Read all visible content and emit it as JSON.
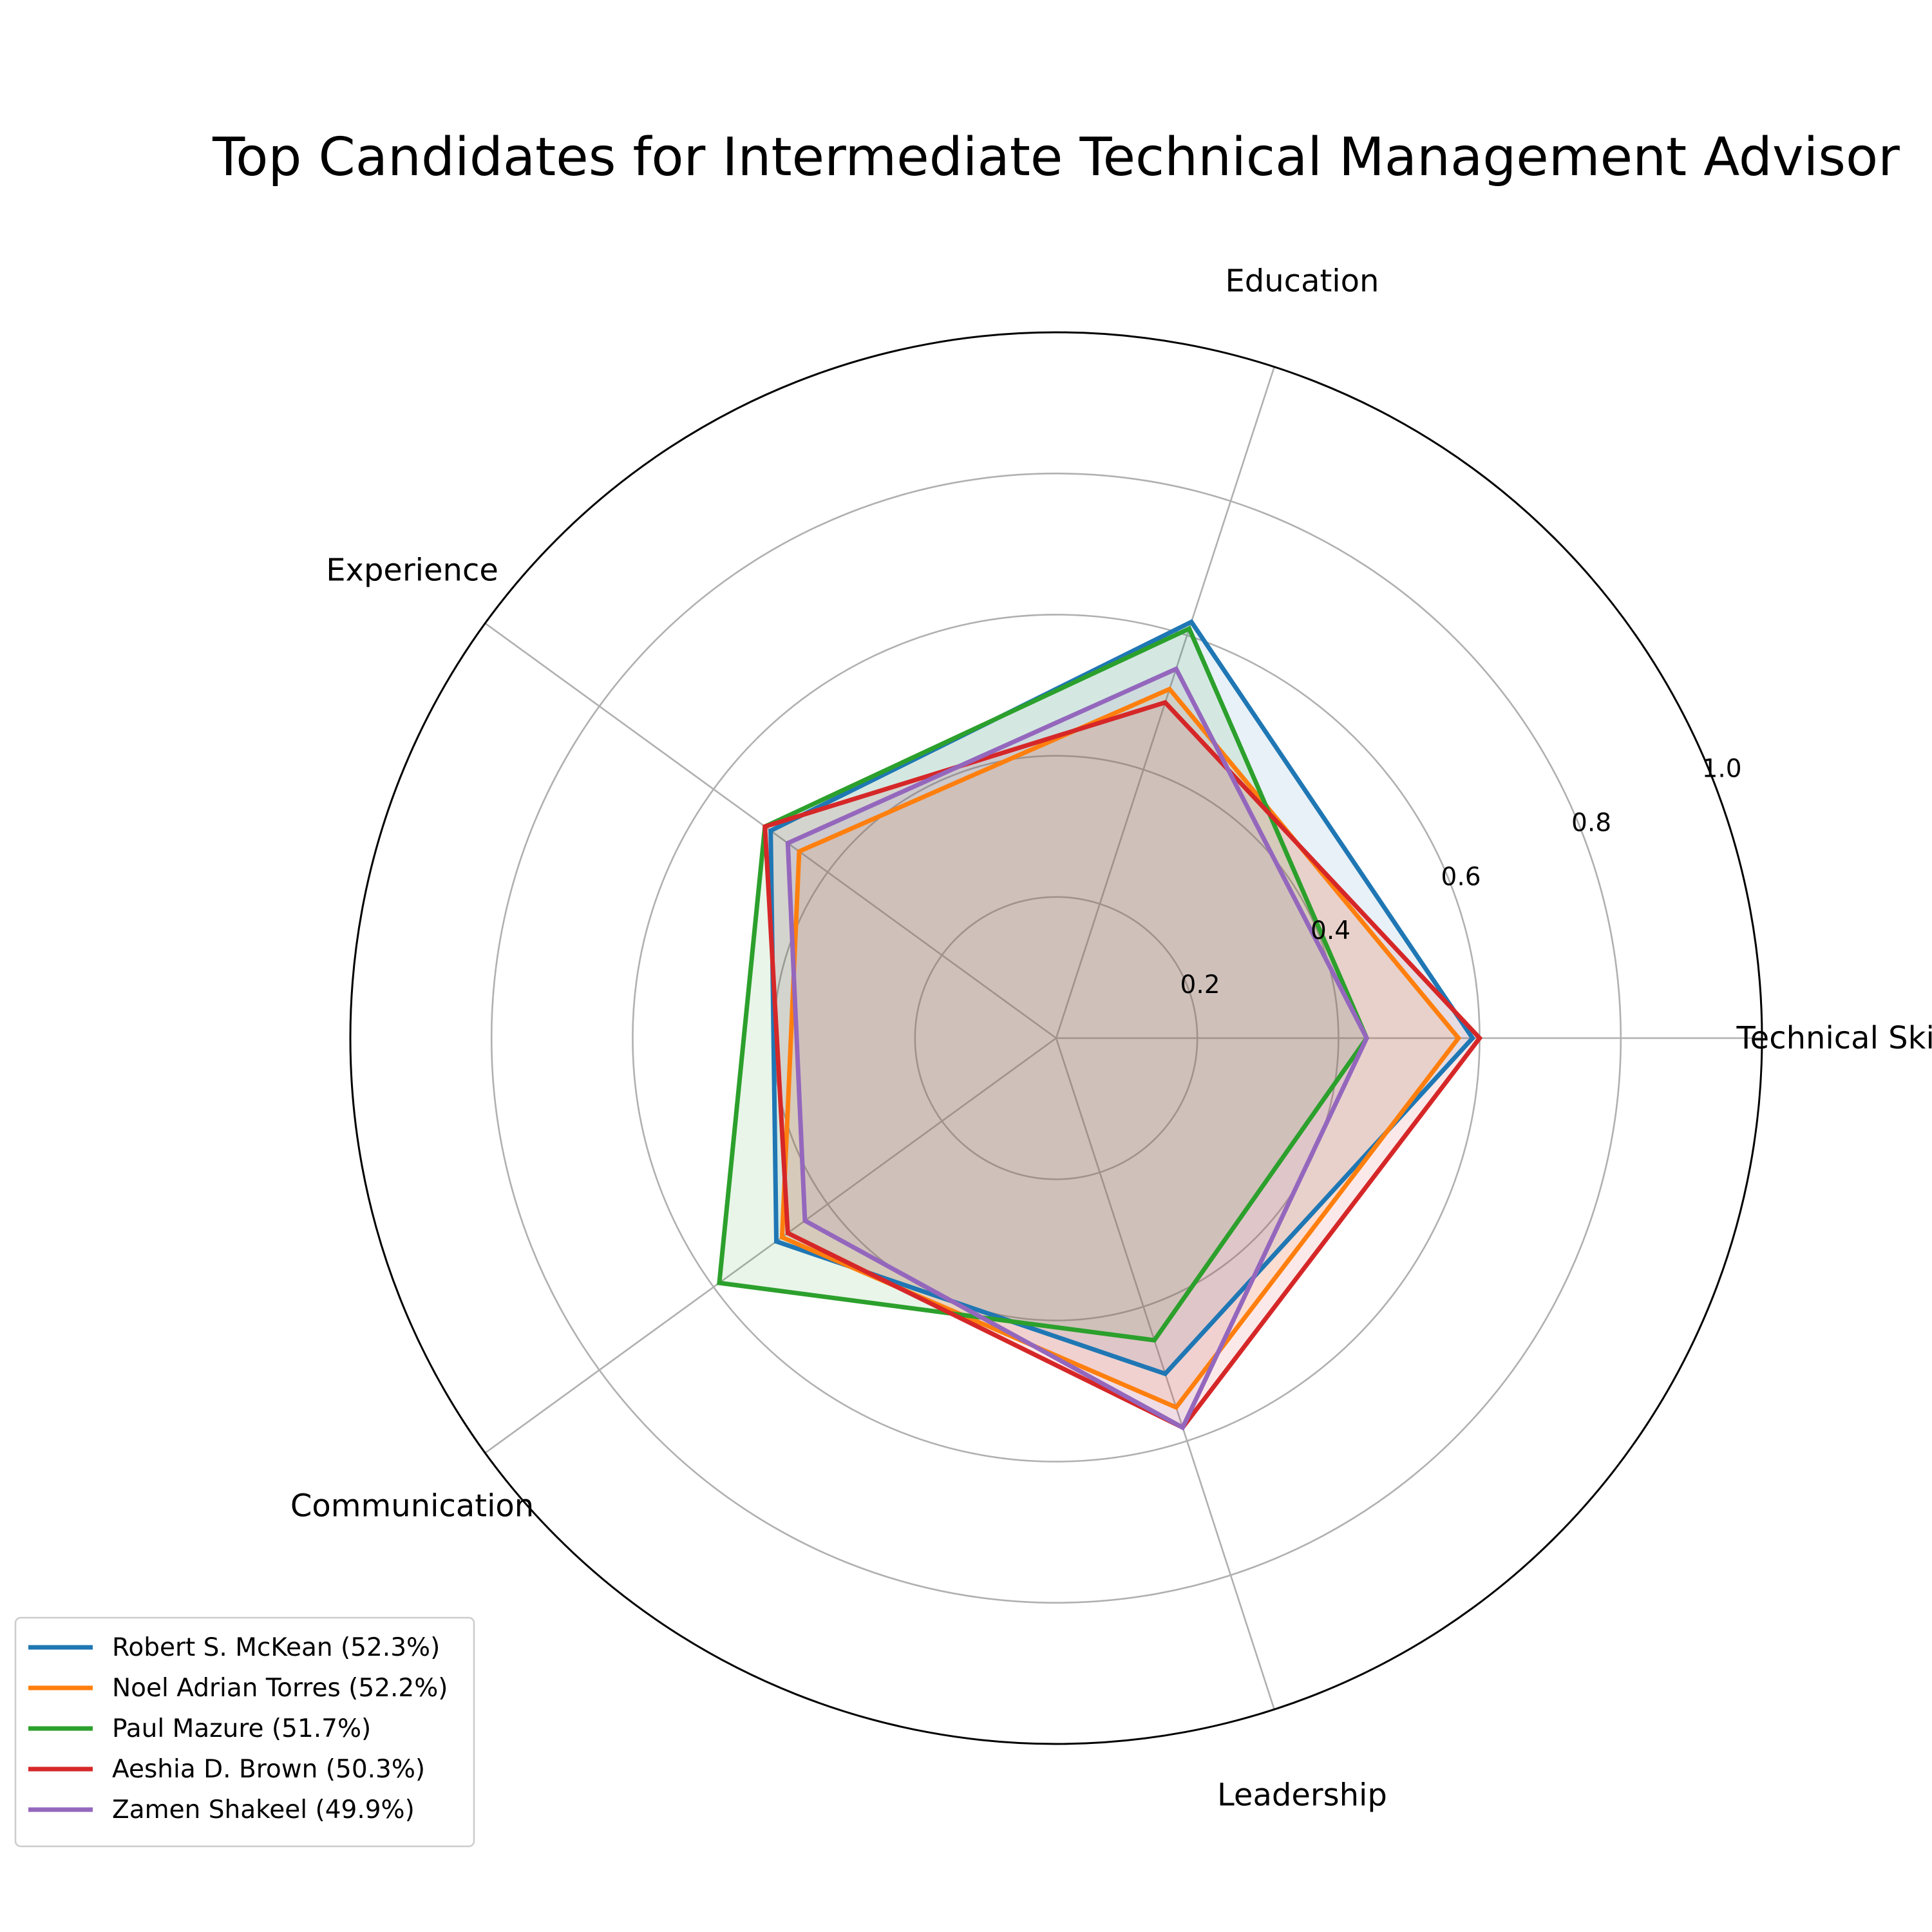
{
  "chart_data": {
    "type": "radar",
    "title": "Top Candidates for Intermediate Technical Management Advisor",
    "axes": [
      "Technical Skills",
      "Education",
      "Experience",
      "Communication",
      "Leadership"
    ],
    "rlim": [
      0,
      1.0
    ],
    "rticks": [
      0.2,
      0.4,
      0.6,
      0.8,
      1.0
    ],
    "rtick_labels": [
      "0.2",
      "0.4",
      "0.6",
      "0.8",
      "1.0"
    ],
    "grid": true,
    "legend_position": "lower-left",
    "series": [
      {
        "name": "Robert S. McKean (52.3%)",
        "color": "#1f77b4",
        "values": [
          0.59,
          0.62,
          0.5,
          0.49,
          0.5
        ]
      },
      {
        "name": "Noel Adrian Torres (52.2%)",
        "color": "#ff7f0e",
        "values": [
          0.57,
          0.52,
          0.45,
          0.48,
          0.55
        ]
      },
      {
        "name": "Paul Mazure (51.7%)",
        "color": "#2ca02c",
        "values": [
          0.44,
          0.61,
          0.51,
          0.59,
          0.45
        ]
      },
      {
        "name": "Aeshia D. Brown (50.3%)",
        "color": "#d62728",
        "values": [
          0.6,
          0.5,
          0.51,
          0.47,
          0.58
        ]
      },
      {
        "name": "Zamen Shakeel (49.9%)",
        "color": "#9467bd",
        "values": [
          0.44,
          0.55,
          0.47,
          0.44,
          0.58
        ]
      }
    ]
  }
}
